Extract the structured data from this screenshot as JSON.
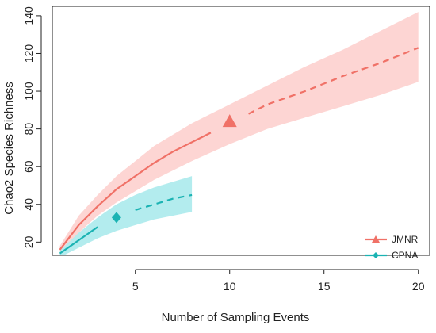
{
  "chart_data": {
    "type": "line",
    "title": "",
    "xlabel": "Number of Sampling Events",
    "ylabel": "Chao2 Species Richness",
    "xlim": [
      0.6,
      20.6
    ],
    "ylim": [
      13,
      145
    ],
    "xticks": [
      5,
      10,
      15,
      20
    ],
    "yticks": [
      20,
      40,
      60,
      80,
      100,
      120,
      140
    ],
    "grid": false,
    "legend_position": "bottom-right",
    "series": [
      {
        "name": "JMNR",
        "color": "#f07167",
        "band_color": "#fdd5d3",
        "marker": "triangle",
        "observed": {
          "x": 10,
          "y": 84
        },
        "interpolated": [
          {
            "x": 1,
            "y": 16
          },
          {
            "x": 2,
            "y": 29
          },
          {
            "x": 3,
            "y": 39
          },
          {
            "x": 4,
            "y": 48
          },
          {
            "x": 5,
            "y": 55
          },
          {
            "x": 6,
            "y": 62
          },
          {
            "x": 7,
            "y": 68
          },
          {
            "x": 8,
            "y": 73
          },
          {
            "x": 9,
            "y": 78
          }
        ],
        "extrapolated": [
          {
            "x": 11,
            "y": 88
          },
          {
            "x": 12,
            "y": 93
          },
          {
            "x": 14,
            "y": 100
          },
          {
            "x": 16,
            "y": 108
          },
          {
            "x": 18,
            "y": 115
          },
          {
            "x": 20,
            "y": 123
          }
        ],
        "band_upper": [
          {
            "x": 1,
            "y": 18
          },
          {
            "x": 2,
            "y": 34
          },
          {
            "x": 3,
            "y": 45
          },
          {
            "x": 4,
            "y": 55
          },
          {
            "x": 5,
            "y": 63
          },
          {
            "x": 6,
            "y": 71
          },
          {
            "x": 8,
            "y": 83
          },
          {
            "x": 10,
            "y": 93
          },
          {
            "x": 12,
            "y": 103
          },
          {
            "x": 14,
            "y": 113
          },
          {
            "x": 16,
            "y": 122
          },
          {
            "x": 18,
            "y": 132
          },
          {
            "x": 20,
            "y": 142
          }
        ],
        "band_lower": [
          {
            "x": 1,
            "y": 14
          },
          {
            "x": 2,
            "y": 25
          },
          {
            "x": 3,
            "y": 34
          },
          {
            "x": 4,
            "y": 41
          },
          {
            "x": 5,
            "y": 47
          },
          {
            "x": 6,
            "y": 53
          },
          {
            "x": 8,
            "y": 63
          },
          {
            "x": 10,
            "y": 72
          },
          {
            "x": 12,
            "y": 80
          },
          {
            "x": 14,
            "y": 86
          },
          {
            "x": 16,
            "y": 92
          },
          {
            "x": 18,
            "y": 98
          },
          {
            "x": 20,
            "y": 105
          }
        ]
      },
      {
        "name": "CPNA",
        "color": "#1bb3b3",
        "band_color": "#b3ecee",
        "marker": "diamond",
        "observed": {
          "x": 4,
          "y": 33
        },
        "interpolated": [
          {
            "x": 1,
            "y": 14
          },
          {
            "x": 1.5,
            "y": 17.5
          },
          {
            "x": 2,
            "y": 21
          },
          {
            "x": 2.5,
            "y": 24.5
          },
          {
            "x": 3,
            "y": 28
          }
        ],
        "extrapolated": [
          {
            "x": 5,
            "y": 37
          },
          {
            "x": 6,
            "y": 40
          },
          {
            "x": 7,
            "y": 43
          },
          {
            "x": 8,
            "y": 45
          }
        ],
        "band_upper": [
          {
            "x": 1,
            "y": 15.5
          },
          {
            "x": 2,
            "y": 25
          },
          {
            "x": 3,
            "y": 33
          },
          {
            "x": 4,
            "y": 40
          },
          {
            "x": 5,
            "y": 45
          },
          {
            "x": 6,
            "y": 49
          },
          {
            "x": 7,
            "y": 52
          },
          {
            "x": 8,
            "y": 55
          }
        ],
        "band_lower": [
          {
            "x": 1,
            "y": 12
          },
          {
            "x": 2,
            "y": 17
          },
          {
            "x": 3,
            "y": 22
          },
          {
            "x": 4,
            "y": 26
          },
          {
            "x": 5,
            "y": 29
          },
          {
            "x": 6,
            "y": 32
          },
          {
            "x": 7,
            "y": 34
          },
          {
            "x": 8,
            "y": 36
          }
        ]
      }
    ]
  }
}
